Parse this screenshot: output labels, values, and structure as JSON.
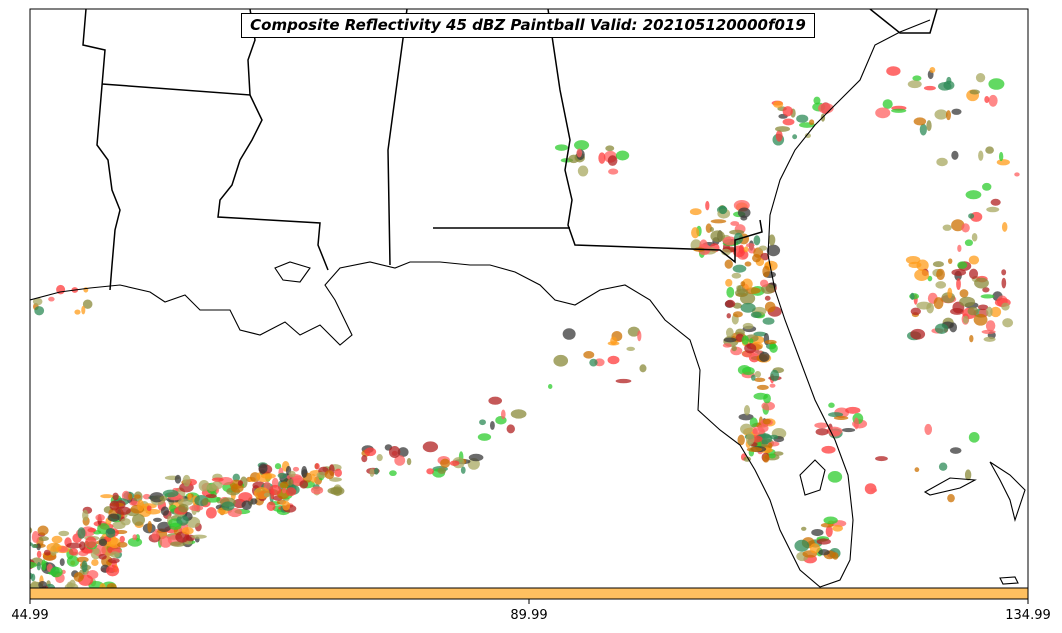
{
  "title": "Composite Reflectivity 45 dBZ Paintball Valid: 202105120000f019",
  "colorbar": {
    "color": "#ffc060",
    "ticks": [
      "44.99",
      "89.99",
      "134.99"
    ]
  },
  "member_colors": [
    "#ff3b3b",
    "#2ecc2e",
    "#ff9c1a",
    "#b22222",
    "#8a8a3a",
    "#3a3a3a",
    "#a8a860",
    "#2e8b57",
    "#ff6060",
    "#cc7000"
  ]
}
